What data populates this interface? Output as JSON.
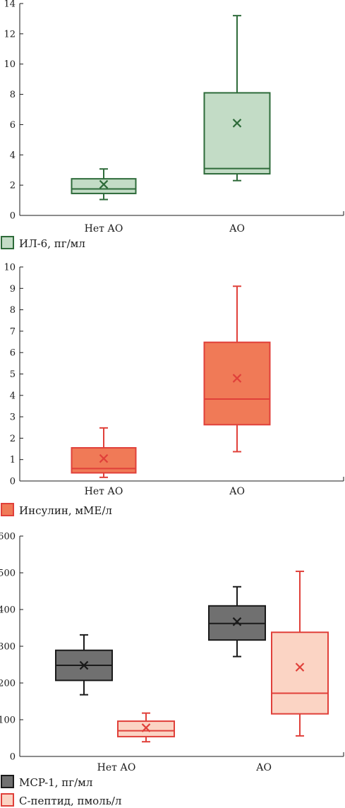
{
  "chart_data": [
    {
      "type": "box",
      "categories": [
        "Нет АО",
        "АО"
      ],
      "ylim": [
        0,
        14
      ],
      "yticks": [
        0,
        2,
        4,
        6,
        8,
        10,
        12,
        14
      ],
      "legend_placement": "bottom-left",
      "series": [
        {
          "name": "ИЛ-6, пг/мл",
          "stroke": "#2e6b3a",
          "fill": "#c3dcc6",
          "boxes": [
            {
              "min": 1.05,
              "q1": 1.45,
              "median": 1.75,
              "q3": 2.42,
              "max": 3.07,
              "mean": 2.05
            },
            {
              "min": 2.3,
              "q1": 2.75,
              "median": 3.1,
              "q3": 8.1,
              "max": 13.2,
              "mean": 6.1
            }
          ]
        }
      ]
    },
    {
      "type": "box",
      "categories": [
        "Нет АО",
        "АО"
      ],
      "ylim": [
        0,
        10
      ],
      "yticks": [
        0,
        1,
        2,
        3,
        4,
        5,
        6,
        7,
        8,
        9,
        10
      ],
      "legend_placement": "bottom-left",
      "series": [
        {
          "name": "Инсулин, мМЕ/л",
          "stroke": "#e0403a",
          "fill": "#f07a57",
          "boxes": [
            {
              "min": 0.17,
              "q1": 0.38,
              "median": 0.58,
              "q3": 1.55,
              "max": 2.48,
              "mean": 1.05
            },
            {
              "min": 1.37,
              "q1": 2.63,
              "median": 3.83,
              "q3": 6.48,
              "max": 9.1,
              "mean": 4.8
            }
          ]
        }
      ]
    },
    {
      "type": "box",
      "categories": [
        "Нет АО",
        "АО"
      ],
      "ylim": [
        0,
        600
      ],
      "yticks": [
        0,
        100,
        200,
        300,
        400,
        500,
        600
      ],
      "legend_placement": "bottom-left",
      "series": [
        {
          "name": "MCP-1, пг/мл",
          "stroke": "#1a1a1a",
          "fill": "#707070",
          "boxes": [
            {
              "min": 168,
              "q1": 207,
              "median": 248,
              "q3": 289,
              "max": 331,
              "mean": 248
            },
            {
              "min": 272,
              "q1": 317,
              "median": 362,
              "q3": 410,
              "max": 462,
              "mean": 367
            }
          ]
        },
        {
          "name": "С-пептид, пмоль/л",
          "stroke": "#e0403a",
          "fill": "#fbd4c4",
          "boxes": [
            {
              "min": 40,
              "q1": 54,
              "median": 70,
              "q3": 96,
              "max": 118,
              "mean": 78
            },
            {
              "min": 56,
              "q1": 116,
              "median": 172,
              "q3": 338,
              "max": 504,
              "mean": 243
            }
          ]
        }
      ]
    }
  ]
}
